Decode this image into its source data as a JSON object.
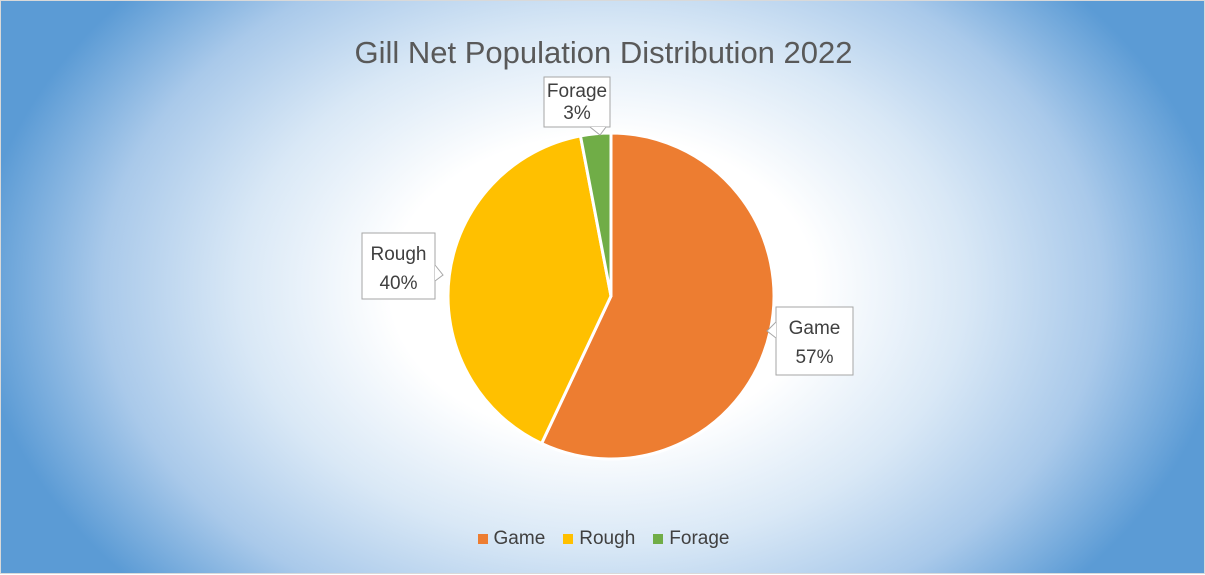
{
  "chart_data": {
    "type": "pie",
    "title": "Gill Net Population Distribution 2022",
    "categories": [
      "Game",
      "Rough",
      "Forage"
    ],
    "values": [
      57,
      40,
      3
    ],
    "value_labels": [
      "57%",
      "40%",
      "3%"
    ],
    "colors": [
      "#ED7D31",
      "#FFC000",
      "#70AD47"
    ],
    "legend_position": "bottom",
    "data_labels": "category name and percentage in callout boxes",
    "background": "radial gradient white center to blue edges"
  }
}
